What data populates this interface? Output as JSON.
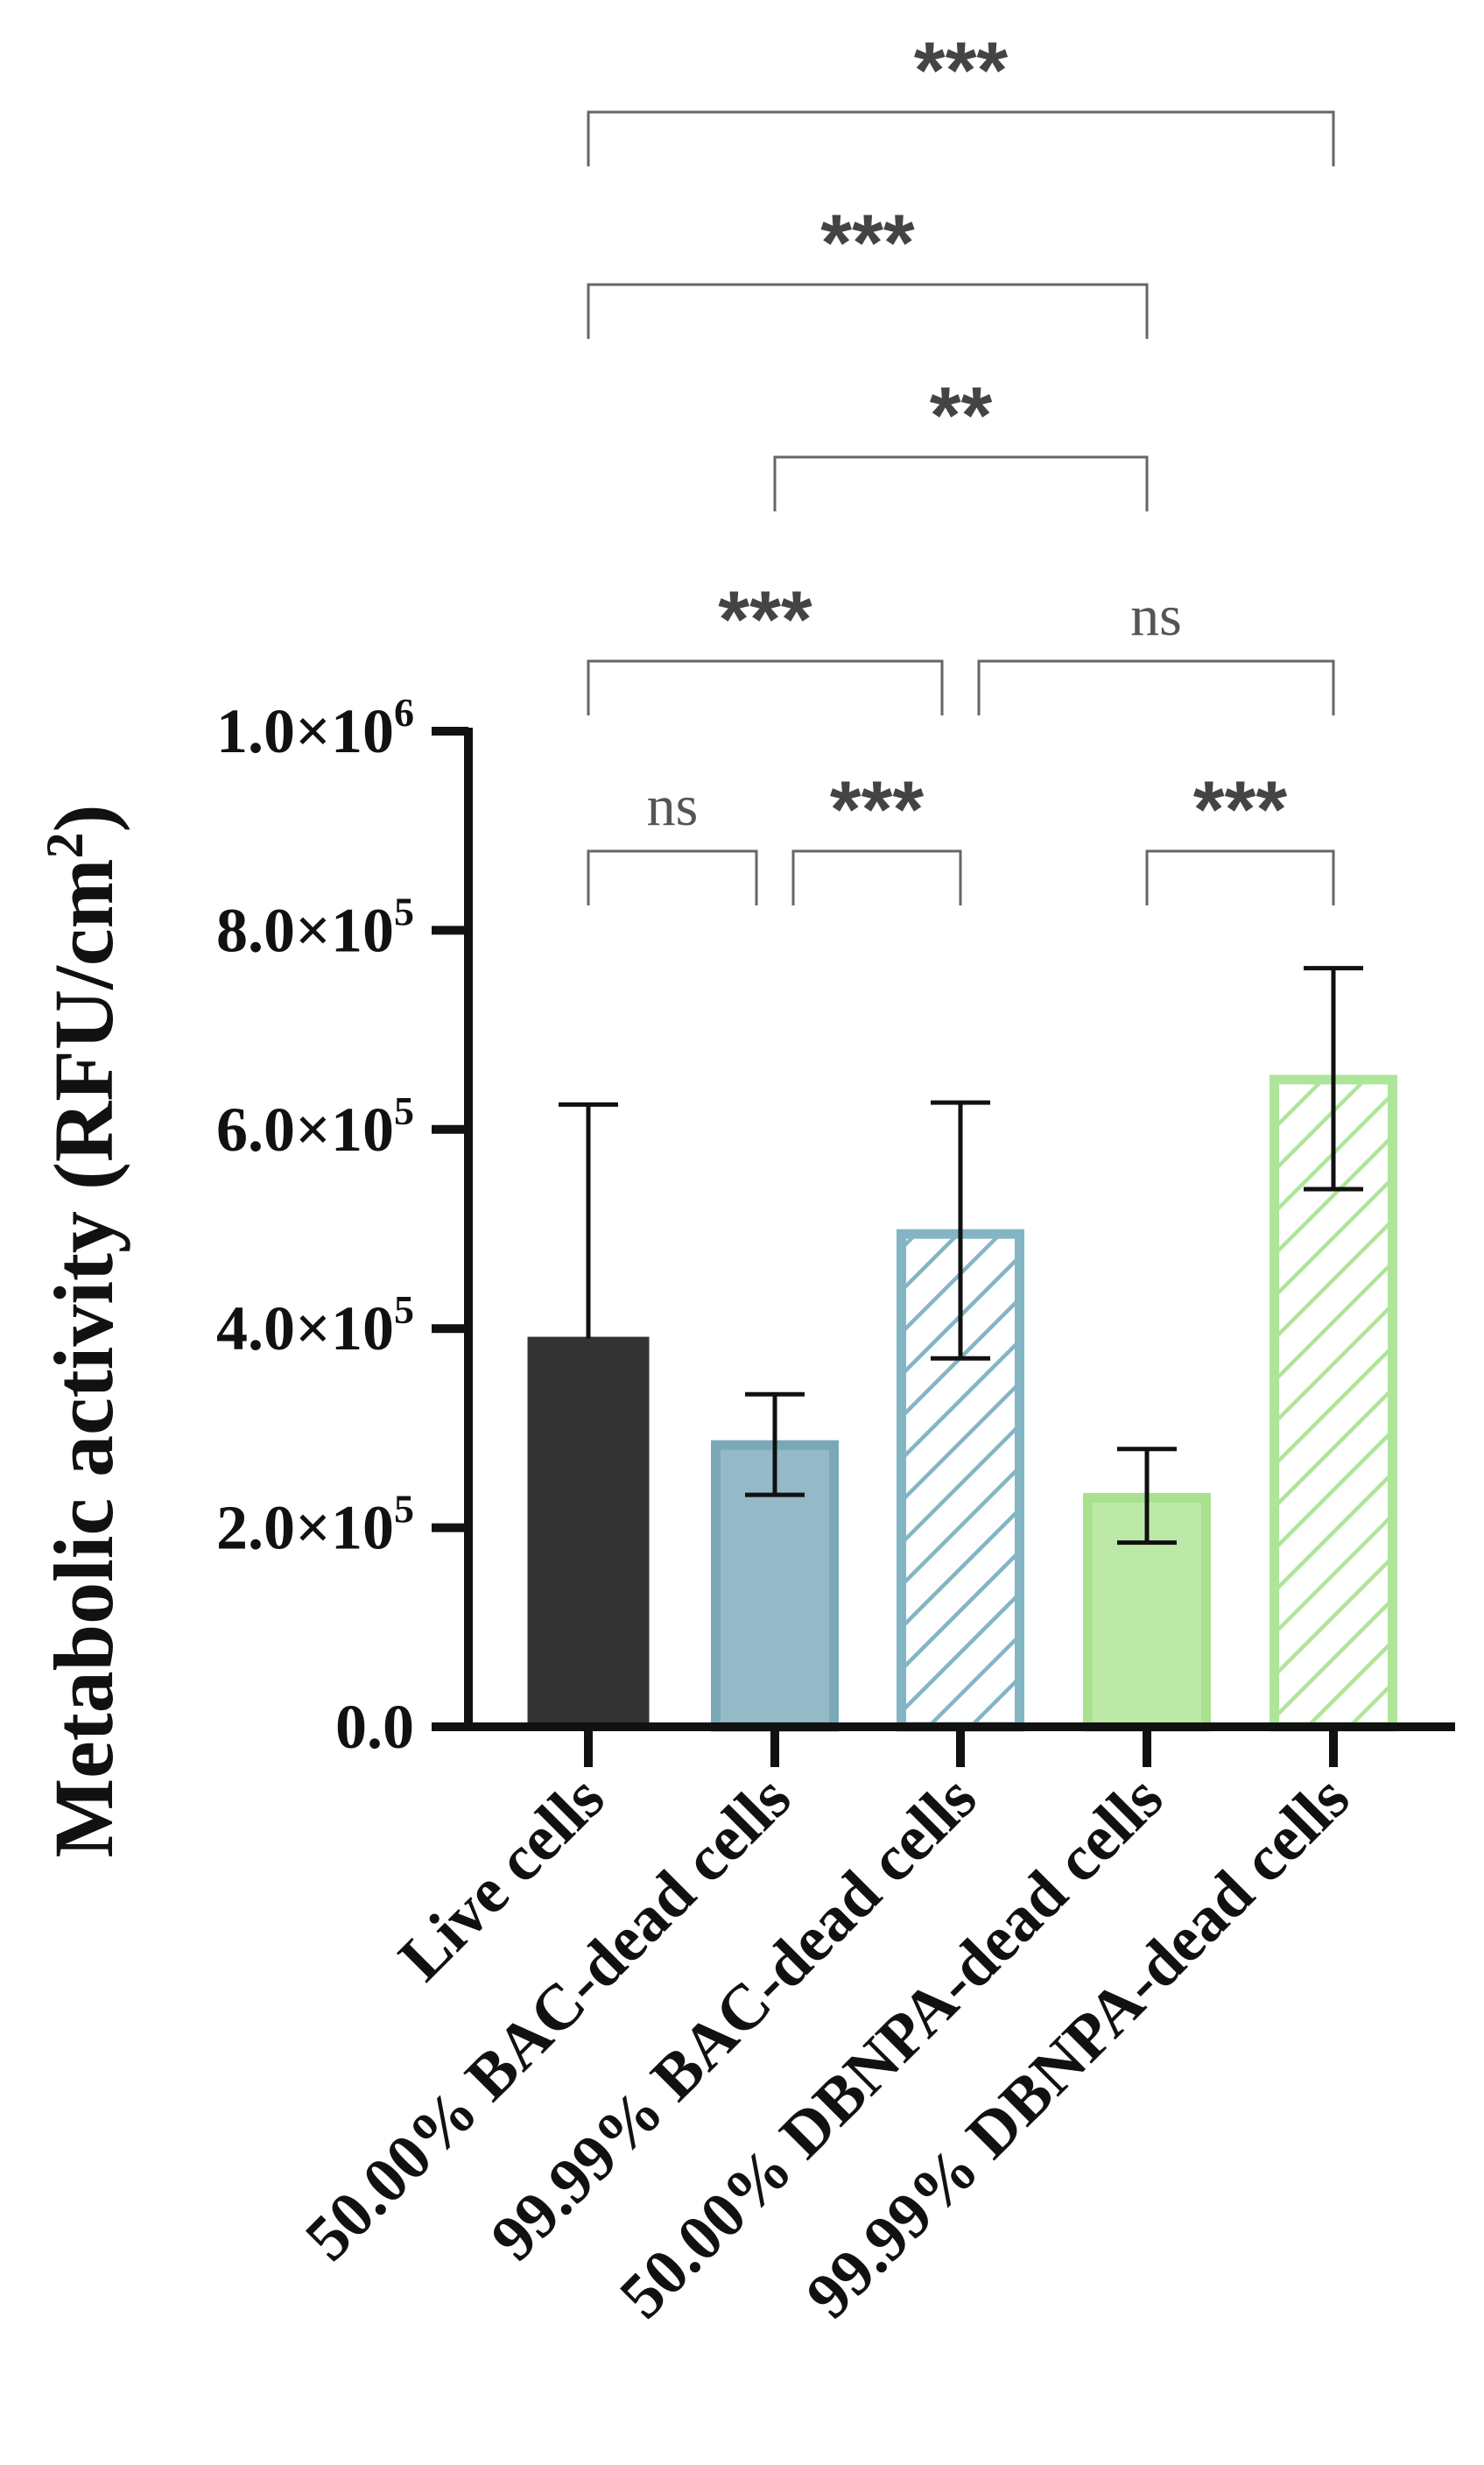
{
  "chart_data": {
    "type": "bar",
    "title": "",
    "xlabel": "",
    "ylabel": "Metabolic activity (RFU/cm",
    "ylabel_sup": "2",
    "ylabel_close": ")",
    "ylim": [
      0,
      1000000
    ],
    "yticks": [
      {
        "value": 0,
        "mantissa": "0.0",
        "times": "",
        "exp": ""
      },
      {
        "value": 200000,
        "mantissa": "2.0×10",
        "exp": "5"
      },
      {
        "value": 400000,
        "mantissa": "4.0×10",
        "exp": "5"
      },
      {
        "value": 600000,
        "mantissa": "6.0×10",
        "exp": "5"
      },
      {
        "value": 800000,
        "mantissa": "8.0×10",
        "exp": "5"
      },
      {
        "value": 1000000,
        "mantissa": "1.0×10",
        "exp": "6"
      }
    ],
    "categories": [
      "Live cells",
      "50.00% BAC-dead cells",
      "99.99% BAC-dead cells",
      "50.00% DBNPA-dead cells",
      "99.99% DBNPA-dead cells"
    ],
    "values": [
      390000,
      283000,
      495000,
      230000,
      650000
    ],
    "error_upper": [
      625000,
      334000,
      627000,
      279000,
      762000
    ],
    "error_lower": [
      390000,
      233000,
      370000,
      185000,
      540000
    ],
    "bar_styles": [
      {
        "fill": "#333333",
        "stroke": "#333333",
        "hatch": false
      },
      {
        "fill": "#93bac6",
        "stroke": "#79a9b8",
        "hatch": false
      },
      {
        "fill": "#ffffff",
        "stroke": "#84b5c4",
        "hatch": true
      },
      {
        "fill": "#bde9a8",
        "stroke": "#a9e18f",
        "hatch": false
      },
      {
        "fill": "#ffffff",
        "stroke": "#aee59a",
        "hatch": true
      }
    ],
    "comparisons": [
      {
        "from": 0,
        "to": 4,
        "label": "***",
        "level": 5
      },
      {
        "from": 0,
        "to": 3,
        "label": "***",
        "level": 4
      },
      {
        "from": 1,
        "to": 3,
        "label": "**",
        "level": 3
      },
      {
        "from": 0,
        "to": 2,
        "label": "***",
        "level": 2
      },
      {
        "from": 2,
        "to": 4,
        "label": "ns",
        "level": 2
      },
      {
        "from": 0,
        "to": 1,
        "label": "ns",
        "level": 1
      },
      {
        "from": 1,
        "to": 2,
        "label": "***",
        "level": 1
      },
      {
        "from": 3,
        "to": 4,
        "label": "***",
        "level": 1
      }
    ]
  }
}
